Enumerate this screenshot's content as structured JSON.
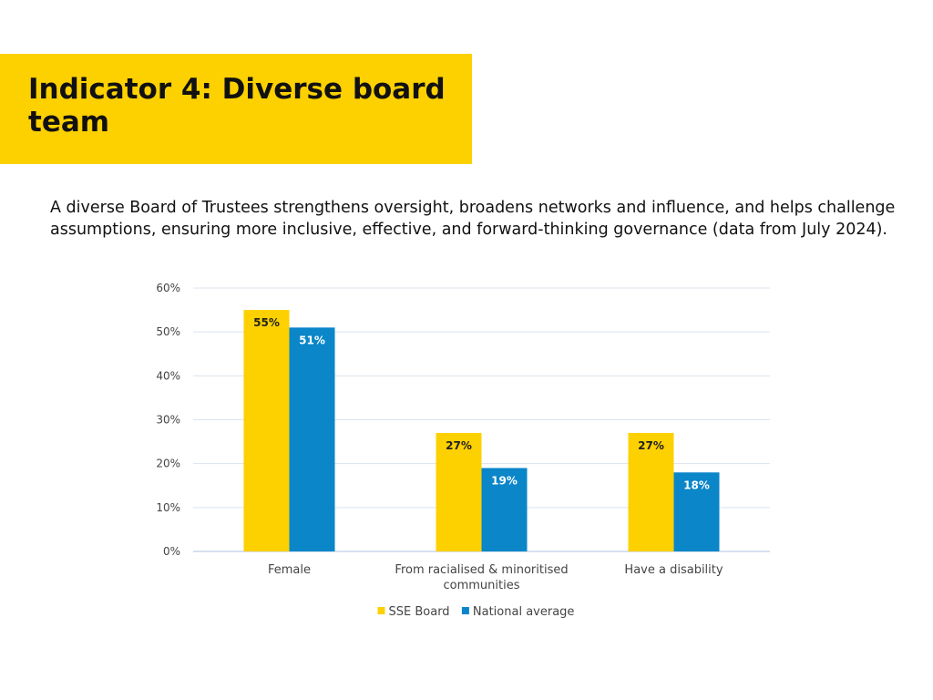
{
  "title": "Indicator 4: Diverse board team",
  "intro": "A diverse Board of Trustees strengthens oversight, broadens networks and influence, and helps challenge assumptions, ensuring more inclusive, effective, and forward-thinking governance (data from July 2024).",
  "colors": {
    "banner": "#FDD000",
    "sse_board": "#FDD000",
    "national_average": "#0A86C9",
    "grid": "#DCE3EC",
    "axis": "#C8D6E8"
  },
  "chart_data": {
    "type": "bar",
    "categories": [
      [
        "Female"
      ],
      [
        "From racialised & minoritised",
        "communities"
      ],
      [
        "Have a disability"
      ]
    ],
    "series": [
      {
        "name": "SSE Board",
        "values": [
          55,
          27,
          27
        ],
        "labels": [
          "55%",
          "27%",
          "27%"
        ]
      },
      {
        "name": "National average",
        "values": [
          51,
          19,
          18
        ],
        "labels": [
          "51%",
          "19%",
          "18%"
        ]
      }
    ],
    "ylim": [
      0,
      60
    ],
    "yticks": [
      0,
      10,
      20,
      30,
      40,
      50,
      60
    ],
    "ytick_labels": [
      "0%",
      "10%",
      "20%",
      "30%",
      "40%",
      "50%",
      "60%"
    ],
    "grid": true,
    "legend": "bottom"
  }
}
